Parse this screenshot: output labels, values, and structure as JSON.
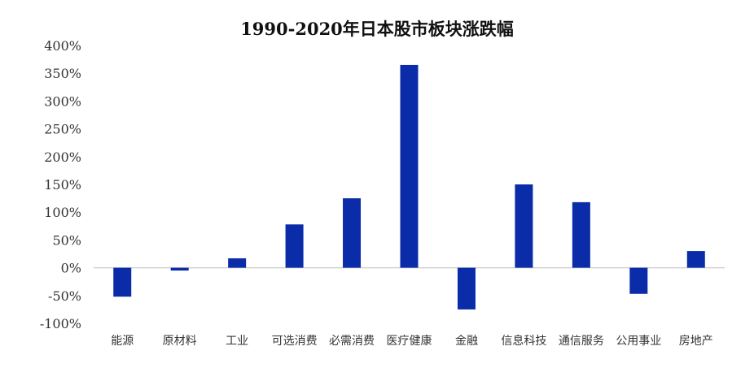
{
  "chart_data": {
    "type": "bar",
    "title": "1990-2020年日本股市板块涨跌幅",
    "xlabel": "",
    "ylabel": "",
    "categories": [
      "能源",
      "原材料",
      "工业",
      "可选消费",
      "必需消费",
      "医疗健康",
      "金融",
      "信息科技",
      "通信服务",
      "公用事业",
      "房地产"
    ],
    "values": [
      -52,
      -5,
      17,
      78,
      125,
      365,
      -75,
      150,
      118,
      -47,
      30
    ],
    "ylim": [
      -100,
      400
    ],
    "yticks": [
      400,
      350,
      300,
      250,
      200,
      150,
      100,
      50,
      0,
      -50,
      -100
    ],
    "ytick_format": "percent",
    "grid": false,
    "legend": "none",
    "bar_color": "#0a2ca8",
    "zero_line_color": "#d0d0d0"
  }
}
